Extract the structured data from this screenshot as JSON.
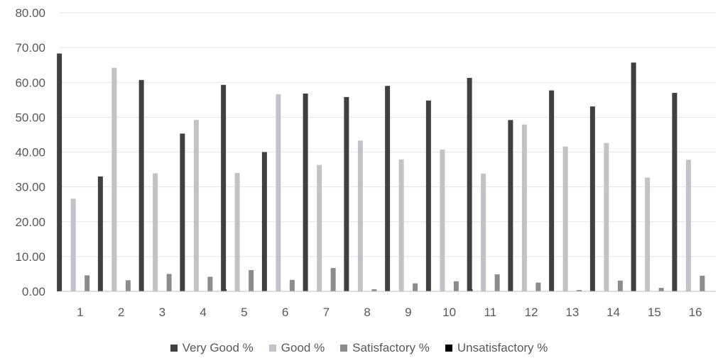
{
  "chart_data": {
    "type": "bar",
    "title": "",
    "xlabel": "",
    "ylabel": "",
    "ylim": [
      0,
      80
    ],
    "yticks": [
      "0.00",
      "10.00",
      "20.00",
      "30.00",
      "40.00",
      "50.00",
      "60.00",
      "70.00",
      "80.00"
    ],
    "grid": true,
    "legend_position": "bottom",
    "categories": [
      "1",
      "2",
      "3",
      "4",
      "5",
      "6",
      "7",
      "8",
      "9",
      "10",
      "11",
      "12",
      "13",
      "14",
      "15",
      "16"
    ],
    "series": [
      {
        "name": "Very Good %",
        "color": "#404040",
        "values": [
          68.3,
          33.0,
          60.7,
          45.3,
          59.3,
          40.0,
          56.8,
          55.8,
          59.0,
          54.8,
          61.3,
          49.2,
          57.7,
          53.1,
          65.7,
          57.0
        ]
      },
      {
        "name": "Good %",
        "color": "#c2c2c8",
        "values": [
          26.6,
          64.2,
          33.9,
          49.2,
          34.0,
          56.6,
          36.3,
          43.3,
          37.9,
          40.7,
          33.8,
          47.9,
          41.6,
          42.6,
          32.7,
          37.8
        ]
      },
      {
        "name": "Satisfactory %",
        "color": "#8c8c8c",
        "values": [
          4.6,
          3.2,
          5.0,
          4.2,
          6.1,
          3.3,
          6.7,
          0.6,
          2.3,
          2.9,
          4.9,
          2.5,
          0.4,
          3.1,
          1.0,
          4.5
        ]
      },
      {
        "name": "Unsatisfactory %",
        "color": "#000000",
        "values": [
          0.0,
          0.0,
          0.0,
          0.6,
          0.0,
          0.0,
          0.0,
          0.0,
          0.0,
          0.6,
          0.0,
          0.0,
          0.0,
          0.0,
          0.0,
          0.0
        ]
      }
    ]
  }
}
